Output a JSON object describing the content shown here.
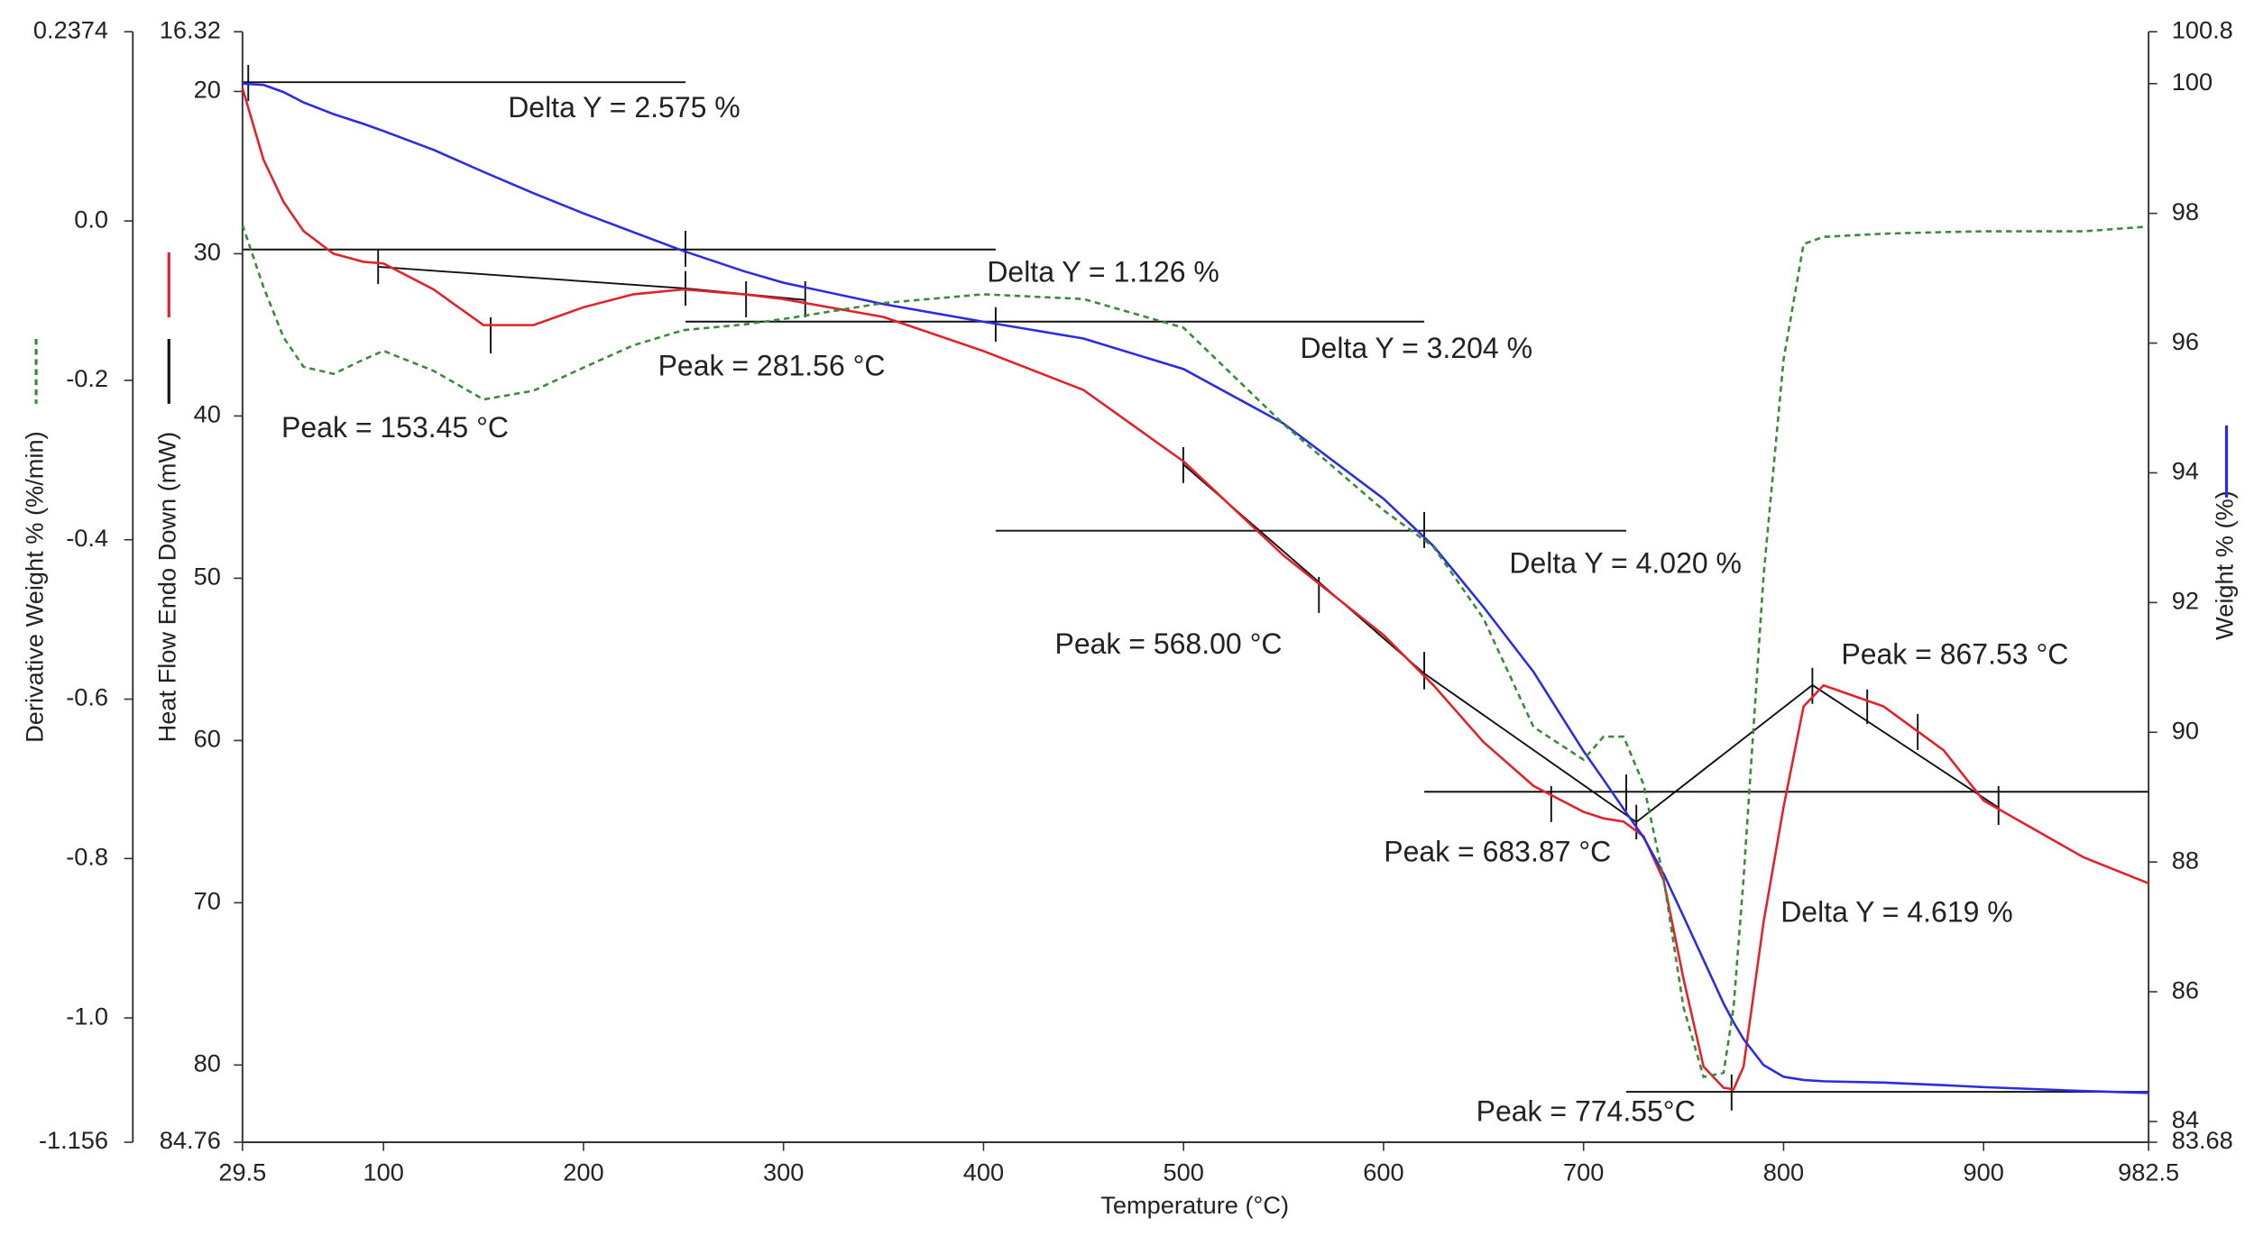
{
  "chart_data": {
    "type": "line",
    "x_label": "Temperature (°C)",
    "xlim": [
      29.5,
      982.5
    ],
    "xticks": [
      29.5,
      100,
      200,
      300,
      400,
      500,
      600,
      700,
      800,
      900,
      982.5
    ],
    "y_axes": [
      {
        "label": "Derivative Weight % (%/min)",
        "lim": [
          -1.156,
          0.2374
        ],
        "inverted": false,
        "ticks": [
          0.2374,
          {
            "value": 0,
            "label": "0.0"
          },
          -0.2,
          -0.4,
          -0.6,
          -0.8,
          {
            "value": -1,
            "label": "-1.0"
          },
          -1.156
        ]
      },
      {
        "label": "Heat Flow Endo Down (mW)",
        "lim": [
          16.32,
          84.76
        ],
        "inverted": true,
        "ticks": [
          16.32,
          20,
          30,
          40,
          50,
          60,
          70,
          80,
          84.76
        ]
      },
      {
        "label": "Weight % (%)",
        "lim": [
          83.68,
          100.8
        ],
        "inverted": false,
        "ticks": [
          83.68,
          84,
          86,
          88,
          90,
          92,
          94,
          96,
          98,
          100,
          100.8
        ]
      }
    ],
    "x": [
      29.5,
      40,
      50,
      60,
      75,
      90,
      100,
      125,
      150,
      175,
      200,
      225,
      250,
      280,
      300,
      350,
      400,
      450,
      500,
      550,
      600,
      625,
      650,
      675,
      700,
      710,
      720,
      730,
      740,
      750,
      760,
      770,
      775,
      780,
      790,
      800,
      810,
      820,
      850,
      880,
      900,
      950,
      982.5
    ],
    "series": [
      {
        "axis": 1,
        "color": "#e3212b",
        "dashed": false,
        "values": [
          19.8,
          24.2,
          26.8,
          28.6,
          30.0,
          30.5,
          30.6,
          32.2,
          34.4,
          34.4,
          33.3,
          32.5,
          32.2,
          32.5,
          32.8,
          33.9,
          36.0,
          38.4,
          42.8,
          48.6,
          53.5,
          56.6,
          60.1,
          62.8,
          64.4,
          64.8,
          65.0,
          65.9,
          68.6,
          74.7,
          80.1,
          81.4,
          81.5,
          80.1,
          71.2,
          64.1,
          57.9,
          56.6,
          57.9,
          60.6,
          63.7,
          67.2,
          68.8
        ]
      },
      {
        "axis": 2,
        "color": "#2b2be3",
        "dashed": false,
        "values": [
          100.0,
          99.98,
          99.87,
          99.71,
          99.53,
          99.38,
          99.27,
          98.98,
          98.64,
          98.31,
          98.0,
          97.71,
          97.42,
          97.11,
          96.93,
          96.6,
          96.33,
          96.07,
          95.6,
          94.76,
          93.6,
          92.87,
          91.93,
          90.93,
          89.71,
          89.27,
          88.82,
          88.38,
          87.82,
          87.16,
          86.49,
          85.82,
          85.53,
          85.27,
          84.87,
          84.69,
          84.64,
          84.62,
          84.6,
          84.56,
          84.53,
          84.47,
          84.44
        ]
      },
      {
        "axis": 0,
        "color": "#3a8a3a",
        "dashed": true,
        "values": [
          -0.005,
          -0.083,
          -0.146,
          -0.183,
          -0.192,
          -0.174,
          -0.163,
          -0.188,
          -0.224,
          -0.213,
          -0.184,
          -0.156,
          -0.137,
          -0.13,
          -0.123,
          -0.103,
          -0.092,
          -0.098,
          -0.134,
          -0.255,
          -0.363,
          -0.409,
          -0.499,
          -0.635,
          -0.676,
          -0.647,
          -0.647,
          -0.707,
          -0.825,
          -0.987,
          -1.074,
          -1.069,
          -0.987,
          -0.825,
          -0.445,
          -0.174,
          -0.029,
          -0.02,
          -0.016,
          -0.014,
          -0.013,
          -0.013,
          -0.007
        ]
      }
    ],
    "annotations": [
      "Delta Y = 2.575 %",
      "Delta Y = 1.126 %",
      "Delta Y = 3.204 %",
      "Delta Y = 4.020 %",
      "Delta Y = 4.619 %",
      "Peak = 153.45 °C",
      "Peak = 281.56 °C",
      "Peak = 568.00 °C",
      "Peak = 683.87 °C",
      "Peak = 867.53 °C",
      "Peak = 774.55°C"
    ]
  }
}
